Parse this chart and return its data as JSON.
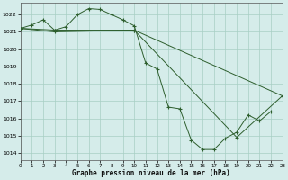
{
  "background_color": "#d5ecea",
  "grid_color": "#a8cfc4",
  "line_color": "#2d5e2d",
  "xlabel": "Graphe pression niveau de la mer (hPa)",
  "xlim": [
    0,
    23
  ],
  "ylim": [
    1013.6,
    1022.7
  ],
  "yticks": [
    1014,
    1015,
    1016,
    1017,
    1018,
    1019,
    1020,
    1021,
    1022
  ],
  "xticks": [
    0,
    1,
    2,
    3,
    4,
    5,
    6,
    7,
    8,
    9,
    10,
    11,
    12,
    13,
    14,
    15,
    16,
    17,
    18,
    19,
    20,
    21,
    22,
    23
  ],
  "series": [
    {
      "x": [
        0,
        1,
        2,
        3,
        4,
        5,
        6,
        7,
        8,
        9,
        10,
        11,
        12,
        13,
        14,
        15,
        16,
        17,
        18,
        19,
        20,
        21,
        22
      ],
      "y": [
        1021.2,
        1021.4,
        1021.7,
        1021.1,
        1021.3,
        1022.0,
        1022.35,
        1022.3,
        1022.0,
        1021.7,
        1021.35,
        1019.2,
        1018.85,
        1016.65,
        1016.55,
        1014.75,
        1014.2,
        1014.2,
        1014.85,
        1015.2,
        1016.2,
        1015.85,
        1016.4
      ]
    },
    {
      "x": [
        0,
        3,
        10,
        23
      ],
      "y": [
        1021.2,
        1021.1,
        1021.1,
        1017.3
      ]
    },
    {
      "x": [
        0,
        3,
        10,
        19,
        23
      ],
      "y": [
        1021.2,
        1021.0,
        1021.1,
        1014.9,
        1017.3
      ]
    }
  ]
}
